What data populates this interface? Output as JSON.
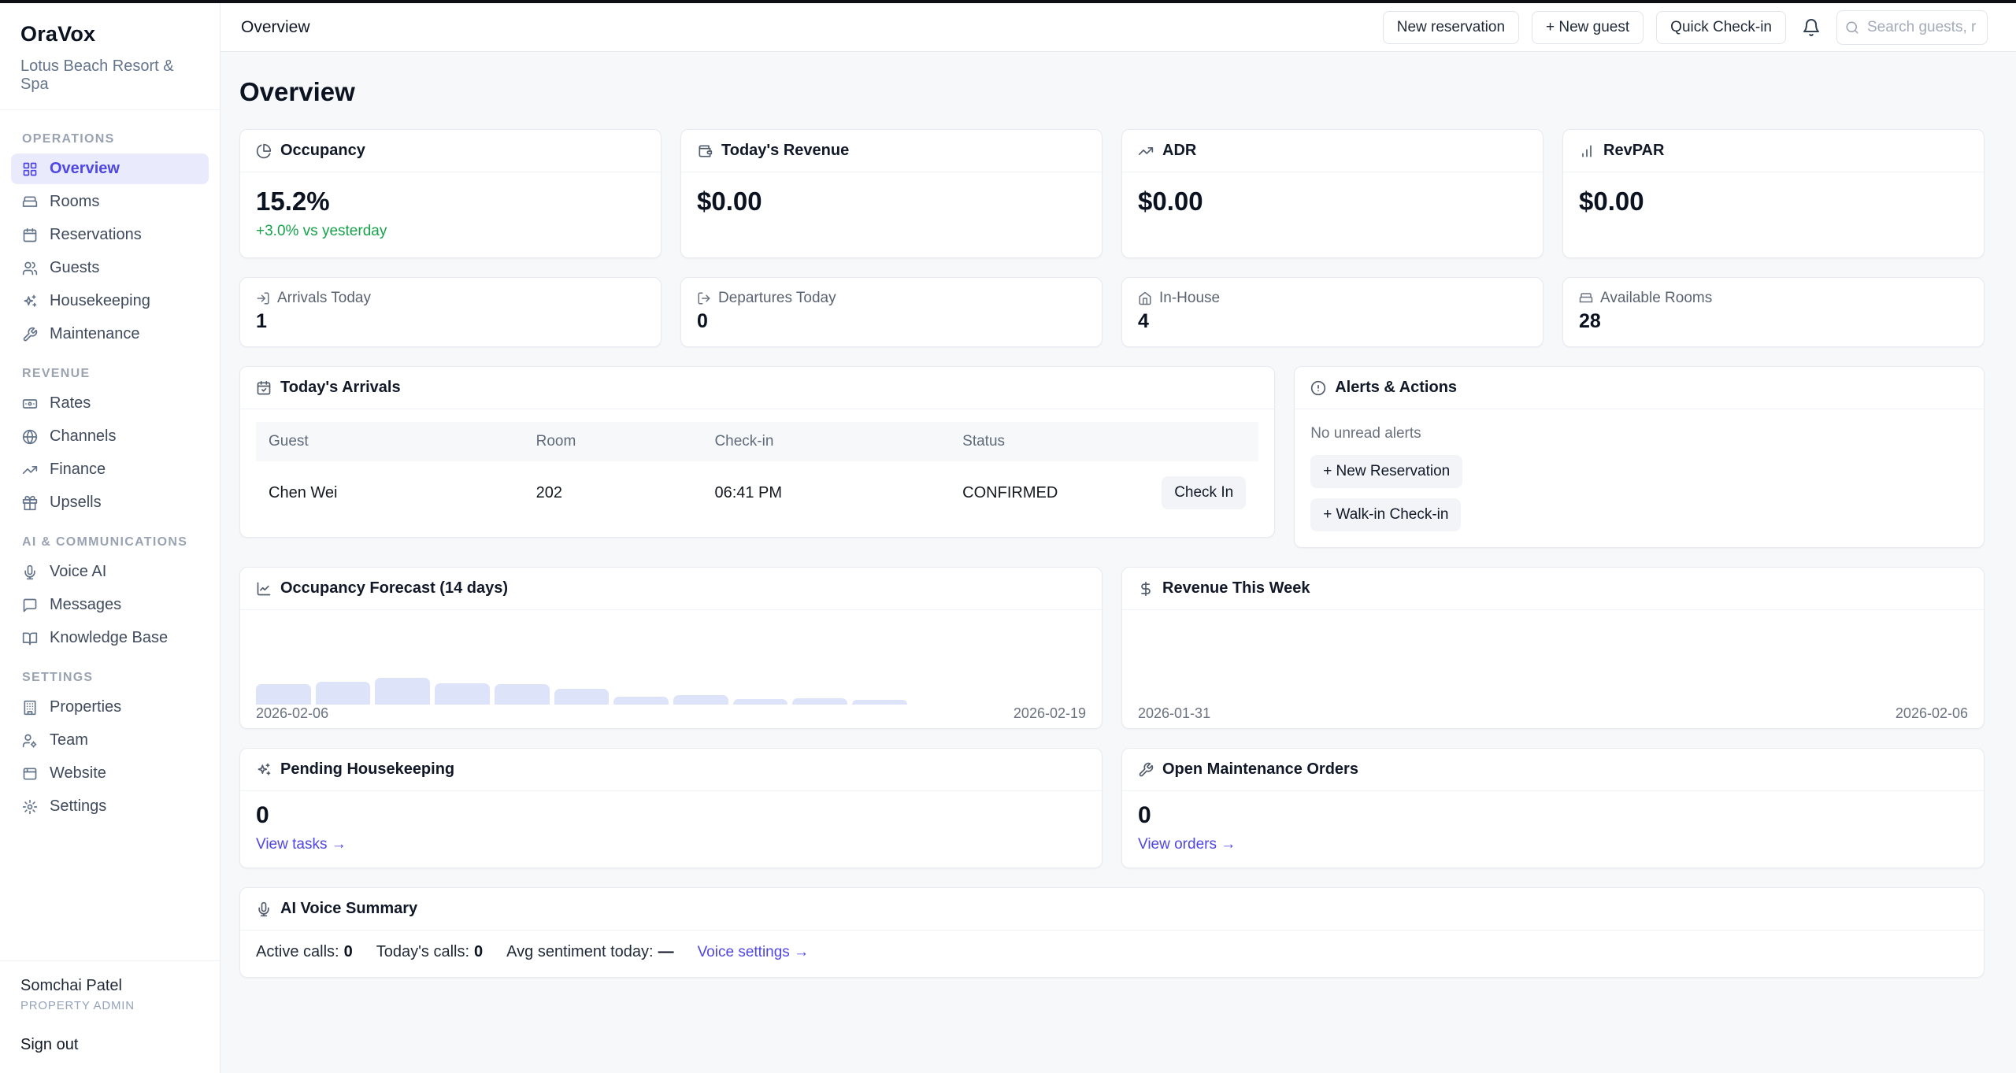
{
  "app": {
    "brand": "OraVox",
    "property": "Lotus Beach Resort & Spa"
  },
  "topbar": {
    "breadcrumb": "Overview",
    "new_reservation_label": "New reservation",
    "new_guest_label": "+ New guest",
    "quick_checkin_label": "Quick Check-in",
    "search_placeholder": "Search guests, r"
  },
  "sidebar": {
    "sections": [
      {
        "label": "OPERATIONS",
        "items": [
          {
            "label": "Overview",
            "icon": "layout-grid-icon"
          },
          {
            "label": "Rooms",
            "icon": "bed-icon"
          },
          {
            "label": "Reservations",
            "icon": "calendar-icon"
          },
          {
            "label": "Guests",
            "icon": "users-icon"
          },
          {
            "label": "Housekeeping",
            "icon": "sparkles-icon"
          },
          {
            "label": "Maintenance",
            "icon": "wrench-icon"
          }
        ]
      },
      {
        "label": "REVENUE",
        "items": [
          {
            "label": "Rates",
            "icon": "banknote-icon"
          },
          {
            "label": "Channels",
            "icon": "globe-icon"
          },
          {
            "label": "Finance",
            "icon": "trending-up-icon"
          },
          {
            "label": "Upsells",
            "icon": "gift-icon"
          }
        ]
      },
      {
        "label": "AI & COMMUNICATIONS",
        "items": [
          {
            "label": "Voice AI",
            "icon": "microphone-icon"
          },
          {
            "label": "Messages",
            "icon": "message-icon"
          },
          {
            "label": "Knowledge Base",
            "icon": "book-open-icon"
          }
        ]
      },
      {
        "label": "SETTINGS",
        "items": [
          {
            "label": "Properties",
            "icon": "building-icon"
          },
          {
            "label": "Team",
            "icon": "team-icon"
          },
          {
            "label": "Website",
            "icon": "browser-icon"
          },
          {
            "label": "Settings",
            "icon": "gear-icon"
          }
        ]
      }
    ],
    "user": {
      "name": "Somchai Patel",
      "role": "PROPERTY ADMIN",
      "signout_label": "Sign out"
    }
  },
  "page": {
    "title": "Overview"
  },
  "kpis": [
    {
      "label": "Occupancy",
      "value": "15.2%",
      "delta": "+3.0% vs yesterday"
    },
    {
      "label": "Today's Revenue",
      "value": "$0.00"
    },
    {
      "label": "ADR",
      "value": "$0.00"
    },
    {
      "label": "RevPAR",
      "value": "$0.00"
    }
  ],
  "stats": [
    {
      "label": "Arrivals Today",
      "value": "1"
    },
    {
      "label": "Departures Today",
      "value": "0"
    },
    {
      "label": "In-House",
      "value": "4"
    },
    {
      "label": "Available Rooms",
      "value": "28"
    }
  ],
  "arrivals": {
    "title": "Today's Arrivals",
    "columns": [
      "Guest",
      "Room",
      "Check-in",
      "Status"
    ],
    "rows": [
      {
        "guest": "Chen Wei",
        "room": "202",
        "checkin": "06:41 PM",
        "status": "CONFIRMED",
        "action_label": "Check In"
      }
    ]
  },
  "alerts": {
    "title": "Alerts & Actions",
    "empty_text": "No unread alerts",
    "action1_label": "+ New Reservation",
    "action2_label": "+ Walk-in Check-in"
  },
  "chart_data": [
    {
      "type": "bar",
      "title": "Occupancy Forecast (14 days)",
      "x_start_label": "2026-02-06",
      "x_end_label": "2026-02-19",
      "days": 14,
      "ylabel": "occupancy % (estimated from bar heights)",
      "values": [
        15,
        17,
        20,
        16,
        15,
        12,
        6,
        7,
        4,
        4.5,
        3.5,
        0,
        0,
        0
      ],
      "ylim": [
        0,
        100
      ],
      "grid": false,
      "legend": false,
      "bar_color": "#dde3f8"
    },
    {
      "type": "bar",
      "title": "Revenue This Week",
      "x_start_label": "2026-01-31",
      "x_end_label": "2026-02-06",
      "days": 7,
      "ylabel": "revenue (USD)",
      "values": [
        0,
        0,
        0,
        0,
        0,
        0,
        0
      ],
      "grid": false,
      "legend": false,
      "bar_color": "#dde3f8"
    }
  ],
  "housekeeping": {
    "title": "Pending Housekeeping",
    "value": "0",
    "link_label": "View tasks →"
  },
  "maintenance": {
    "title": "Open Maintenance Orders",
    "value": "0",
    "link_label": "View orders →"
  },
  "voice_summary": {
    "title": "AI Voice Summary",
    "active_calls_label": "Active calls:",
    "active_calls_value": "0",
    "todays_calls_label": "Today's calls:",
    "todays_calls_value": "0",
    "sentiment_label": "Avg sentiment today:",
    "sentiment_value": "—",
    "link_label": "Voice settings →"
  },
  "colors": {
    "accent": "#4f46e5",
    "positive": "#16a34a",
    "bar_fill": "#dde3f8",
    "active_nav_bg": "#e9ebfd"
  }
}
